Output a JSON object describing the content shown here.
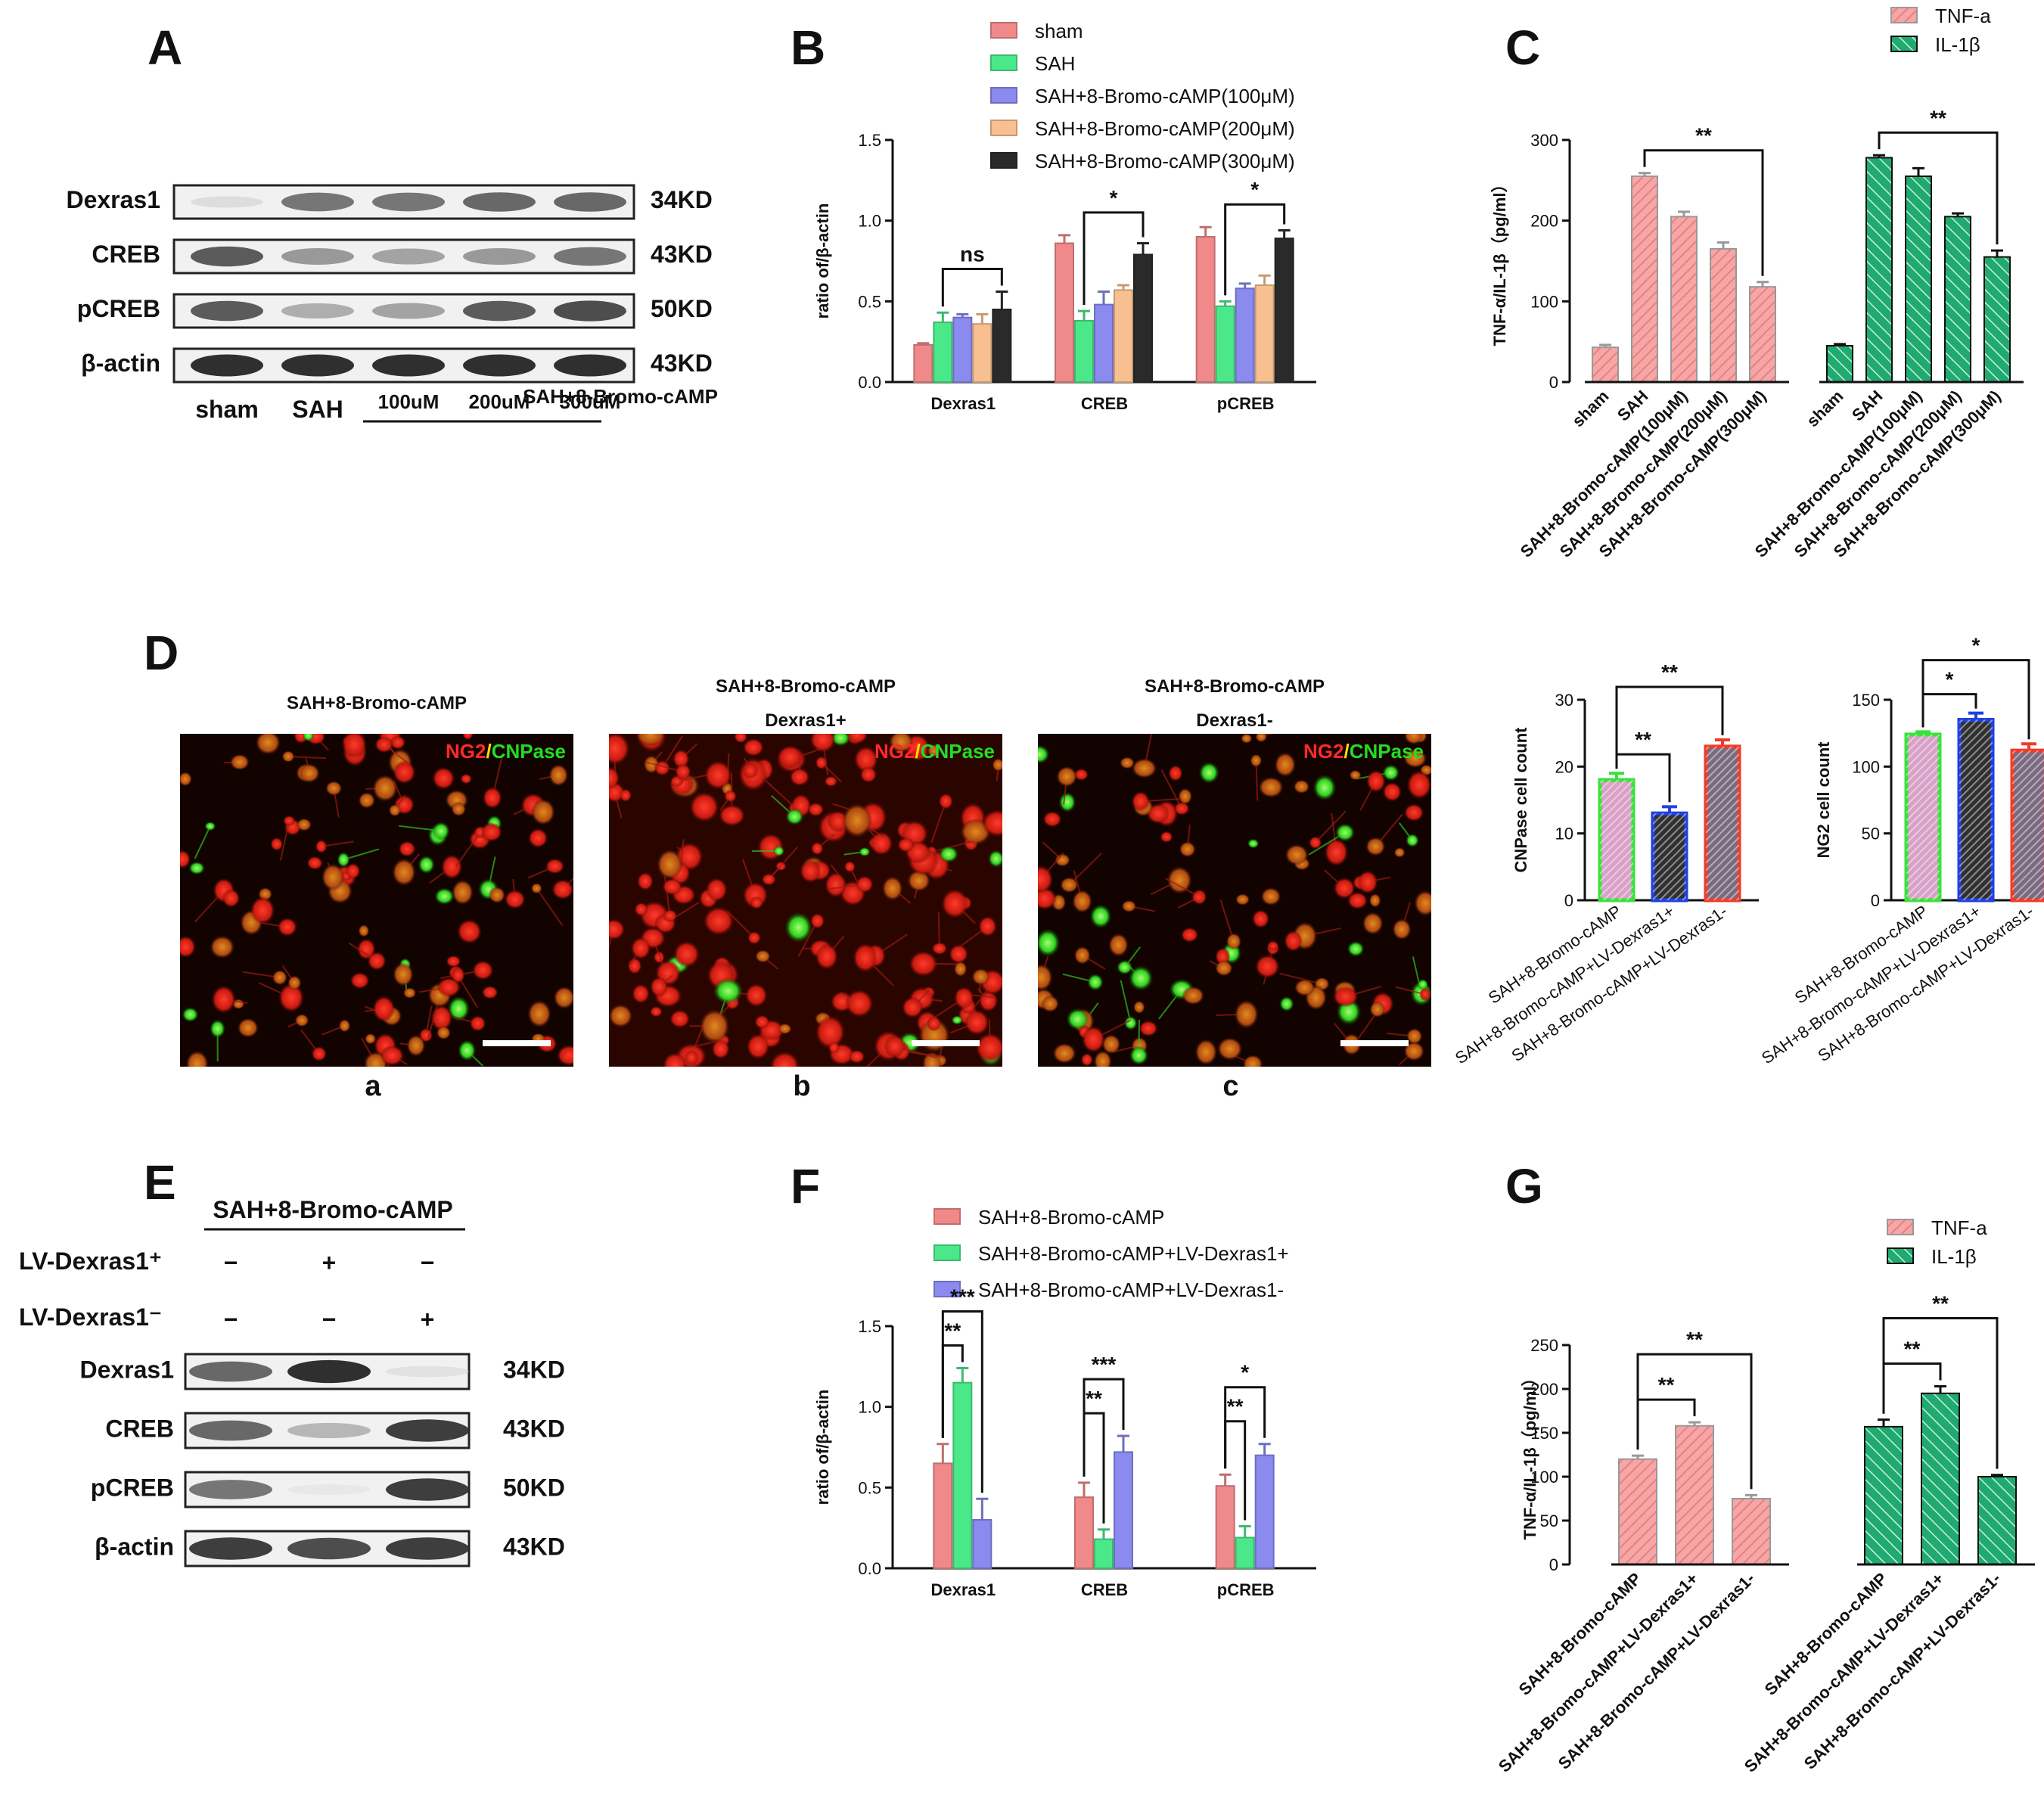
{
  "panels": {
    "A": {
      "letter": "A",
      "rows": [
        "Dexras1",
        "CREB",
        "pCREB",
        "β-actin"
      ],
      "kd": [
        "34KD",
        "43KD",
        "50KD",
        "43KD"
      ],
      "lanes": [
        "sham",
        "SAH",
        "100uM",
        "200uM",
        "300uM"
      ],
      "group_label": "SAH+8-Bromo-cAMP",
      "intensity": [
        [
          0.15,
          0.7,
          0.7,
          0.75,
          0.75
        ],
        [
          0.8,
          0.55,
          0.5,
          0.55,
          0.7
        ],
        [
          0.8,
          0.45,
          0.5,
          0.8,
          0.85
        ],
        [
          0.95,
          0.95,
          0.95,
          0.95,
          0.95
        ]
      ]
    },
    "D": {
      "letter": "D",
      "images": [
        {
          "title1": "SAH+8-Bromo-cAMP",
          "title2": "",
          "sub": "a"
        },
        {
          "title1": "SAH+8-Bromo-cAMP",
          "title2": "Dexras1+",
          "sub": "b"
        },
        {
          "title1": "SAH+8-Bromo-cAMP",
          "title2": "Dexras1-",
          "sub": "c"
        }
      ],
      "overlay": {
        "ng2": "NG2",
        "slash": "/",
        "cnpase": "CNPase"
      }
    },
    "E": {
      "letter": "E",
      "group_label": "SAH+8-Bromo-cAMP",
      "lv_plus_label": "LV-Dexras1⁺",
      "lv_minus_label": "LV-Dexras1⁻",
      "lv_plus_signs": [
        "−",
        "+",
        "−"
      ],
      "lv_minus_signs": [
        "−",
        "−",
        "+"
      ],
      "rows": [
        "Dexras1",
        "CREB",
        "pCREB",
        "β-actin"
      ],
      "kd": [
        "34KD",
        "43KD",
        "50KD",
        "43KD"
      ],
      "intensity": [
        [
          0.75,
          0.95,
          0.1
        ],
        [
          0.75,
          0.4,
          0.9
        ],
        [
          0.7,
          0.05,
          0.9
        ],
        [
          0.9,
          0.85,
          0.9
        ]
      ]
    }
  },
  "chart_data": [
    {
      "panel": "B",
      "type": "bar",
      "title": "",
      "ylabel": "ratio of/β-actin",
      "ylim": [
        0,
        1.5
      ],
      "yticks": [
        "0.0",
        "0.5",
        "1.0",
        "1.5"
      ],
      "categories": [
        "Dexras1",
        "CREB",
        "pCREB"
      ],
      "series": [
        {
          "name": "sham",
          "color": "#f08a8a",
          "values": [
            0.23,
            0.86,
            0.9
          ],
          "errors": [
            0.01,
            0.05,
            0.06
          ]
        },
        {
          "name": "SAH",
          "color": "#4be88a",
          "values": [
            0.37,
            0.38,
            0.47
          ],
          "errors": [
            0.06,
            0.06,
            0.03
          ]
        },
        {
          "name": "SAH+8-Bromo-cAMP(100μM)",
          "color": "#8a8aef",
          "values": [
            0.4,
            0.48,
            0.58
          ],
          "errors": [
            0.02,
            0.08,
            0.03
          ]
        },
        {
          "name": "SAH+8-Bromo-cAMP(200μM)",
          "color": "#f8c090",
          "values": [
            0.36,
            0.57,
            0.6
          ],
          "errors": [
            0.06,
            0.03,
            0.06
          ]
        },
        {
          "name": "SAH+8-Bromo-cAMP(300μM)",
          "color": "#2a2a2a",
          "values": [
            0.45,
            0.79,
            0.89
          ],
          "errors": [
            0.11,
            0.07,
            0.05
          ]
        }
      ],
      "significance": [
        {
          "category": 0,
          "from": 1,
          "to": 4,
          "label": "ns"
        },
        {
          "category": 1,
          "from": 1,
          "to": 4,
          "label": "*"
        },
        {
          "category": 2,
          "from": 1,
          "to": 4,
          "label": "*"
        }
      ]
    },
    {
      "panel": "C",
      "type": "bar",
      "title": "",
      "ylabel": "TNF-α/IL-1β（pg/ml）",
      "ylim": [
        0,
        300
      ],
      "yticks": [
        "0",
        "100",
        "200",
        "300"
      ],
      "groups": [
        "TNF-a",
        "IL-1β"
      ],
      "categories": [
        "sham",
        "SAH",
        "SAH+8-Bromo-cAMP(100μM)",
        "SAH+8-Bromo-cAMP(200μM)",
        "SAH+8-Bromo-cAMP(300μM)"
      ],
      "series": [
        {
          "name": "TNF-a",
          "color": "#f6a6a6",
          "values": [
            43,
            255,
            205,
            165,
            118
          ],
          "errors": [
            3,
            4,
            6,
            8,
            6
          ]
        },
        {
          "name": "IL-1β",
          "color": "#1faa70",
          "values": [
            45,
            278,
            255,
            205,
            155
          ],
          "errors": [
            2,
            3,
            10,
            4,
            8
          ]
        }
      ],
      "significance": [
        {
          "series": 0,
          "from": 1,
          "to": 4,
          "label": "**"
        },
        {
          "series": 1,
          "from": 1,
          "to": 4,
          "label": "**"
        }
      ]
    },
    {
      "panel": "D-left",
      "type": "bar",
      "title": "",
      "ylabel": "CNPase cell count",
      "ylim": [
        0,
        30
      ],
      "yticks": [
        "0",
        "10",
        "20",
        "30"
      ],
      "categories": [
        "SAH+8-Bromo-cAMP",
        "SAH+8-Bromo-cAMP+LV-Dexras1+",
        "SAH+8-Bromo-cAMP+LV-Dexras1-"
      ],
      "series": [
        {
          "name": "",
          "colors": [
            "#3ce03c",
            "#2040e0",
            "#ee3b2b"
          ],
          "fills": [
            "#d9a0c8",
            "#303030",
            "#7a6a80"
          ],
          "values": [
            18,
            13,
            23
          ],
          "errors": [
            1,
            1,
            1
          ]
        }
      ],
      "significance": [
        {
          "from": 0,
          "to": 1,
          "label": "**"
        },
        {
          "from": 0,
          "to": 2,
          "label": "**"
        }
      ]
    },
    {
      "panel": "D-right",
      "type": "bar",
      "title": "",
      "ylabel": "NG2 cell count",
      "ylim": [
        0,
        150
      ],
      "yticks": [
        "0",
        "50",
        "100",
        "150"
      ],
      "categories": [
        "SAH+8-Bromo-cAMP",
        "SAH+8-Bromo-cAMP+LV-Dexras1+",
        "SAH+8-Bromo-cAMP+LV-Dexras1-"
      ],
      "series": [
        {
          "name": "",
          "colors": [
            "#3ce03c",
            "#2040e0",
            "#ee3b2b"
          ],
          "fills": [
            "#d9a0c8",
            "#303030",
            "#7a6a80"
          ],
          "values": [
            124,
            135,
            112
          ],
          "errors": [
            2,
            5,
            5
          ]
        }
      ],
      "significance": [
        {
          "from": 0,
          "to": 1,
          "label": "*"
        },
        {
          "from": 0,
          "to": 2,
          "label": "*"
        }
      ]
    },
    {
      "panel": "F",
      "type": "bar",
      "title": "",
      "ylabel": "ratio of/β-actin",
      "ylim": [
        0,
        1.5
      ],
      "yticks": [
        "0.0",
        "0.5",
        "1.0",
        "1.5"
      ],
      "categories": [
        "Dexras1",
        "CREB",
        "pCREB"
      ],
      "series": [
        {
          "name": "SAH+8-Bromo-cAMP",
          "color": "#f08a8a",
          "values": [
            0.65,
            0.44,
            0.51
          ],
          "errors": [
            0.12,
            0.09,
            0.07
          ]
        },
        {
          "name": "SAH+8-Bromo-cAMP+LV-Dexras1+",
          "color": "#4be88a",
          "values": [
            1.15,
            0.18,
            0.19
          ],
          "errors": [
            0.09,
            0.06,
            0.07
          ]
        },
        {
          "name": "SAH+8-Bromo-cAMP+LV-Dexras1-",
          "color": "#8a8aef",
          "values": [
            0.3,
            0.72,
            0.7
          ],
          "errors": [
            0.13,
            0.1,
            0.07
          ]
        }
      ],
      "significance": [
        {
          "category": 0,
          "from": 0,
          "to": 1,
          "label": "**"
        },
        {
          "category": 0,
          "from": 0,
          "to": 2,
          "label": "***"
        },
        {
          "category": 1,
          "from": 0,
          "to": 1,
          "label": "**"
        },
        {
          "category": 1,
          "from": 0,
          "to": 2,
          "label": "***"
        },
        {
          "category": 2,
          "from": 0,
          "to": 1,
          "label": "**"
        },
        {
          "category": 2,
          "from": 0,
          "to": 2,
          "label": "*"
        }
      ]
    },
    {
      "panel": "G",
      "type": "bar",
      "title": "",
      "ylabel": "TNF-α/IL-1β（pg/ml）",
      "ylim": [
        0,
        250
      ],
      "yticks": [
        "0",
        "50",
        "100",
        "150",
        "200",
        "250"
      ],
      "groups": [
        "TNF-a",
        "IL-1β"
      ],
      "categories": [
        "SAH+8-Bromo-cAMP",
        "SAH+8-Bromo-cAMP+LV-Dexras1+",
        "SAH+8-Bromo-cAMP+LV-Dexras1-"
      ],
      "series": [
        {
          "name": "TNF-a",
          "color": "#f6a6a6",
          "values": [
            120,
            158,
            75
          ],
          "errors": [
            4,
            4,
            4
          ]
        },
        {
          "name": "IL-1β",
          "color": "#1faa70",
          "values": [
            157,
            195,
            100
          ],
          "errors": [
            8,
            8,
            2
          ]
        }
      ],
      "significance": [
        {
          "series": 0,
          "from": 0,
          "to": 1,
          "label": "**"
        },
        {
          "series": 0,
          "from": 0,
          "to": 2,
          "label": "**"
        },
        {
          "series": 1,
          "from": 0,
          "to": 1,
          "label": "**"
        },
        {
          "series": 1,
          "from": 0,
          "to": 2,
          "label": "**"
        }
      ]
    }
  ]
}
